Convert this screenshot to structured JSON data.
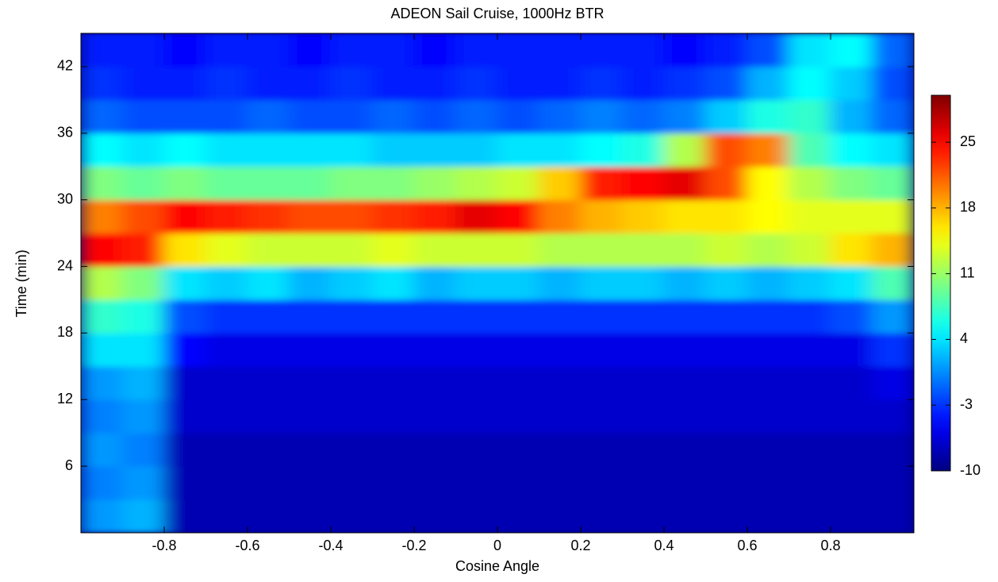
{
  "chart_data": {
    "type": "heatmap",
    "title": "ADEON Sail Cruise, 1000Hz BTR",
    "xlabel": "Cosine Angle",
    "ylabel": "Time (min)",
    "x": [
      -0.95,
      -0.85,
      -0.75,
      -0.65,
      -0.55,
      -0.45,
      -0.35,
      -0.25,
      -0.15,
      -0.05,
      0.05,
      0.15,
      0.25,
      0.35,
      0.45,
      0.55,
      0.65,
      0.75,
      0.85,
      0.95
    ],
    "y": [
      1.5,
      4.5,
      7.5,
      10.5,
      13.5,
      16.5,
      19.5,
      22.5,
      25.5,
      28.5,
      31.5,
      34.5,
      37.5,
      40.5,
      43.5
    ],
    "values": [
      [
        1,
        2,
        -8,
        -8,
        -8,
        -8,
        -8,
        -8,
        -8,
        -8,
        -8,
        -8,
        -8,
        -8,
        -8,
        -8,
        -8,
        -8,
        -8,
        -8
      ],
      [
        0,
        1,
        -8,
        -8,
        -8,
        -8,
        -8,
        -8,
        -8,
        -8,
        -8,
        -8,
        -8,
        -8,
        -8,
        -8,
        -8,
        -8,
        -8,
        -8
      ],
      [
        1,
        0,
        -8,
        -8,
        -8,
        -8,
        -8,
        -8,
        -8,
        -8,
        -8,
        -8,
        -8,
        -8,
        -8,
        -8,
        -8,
        -8,
        -8,
        -8
      ],
      [
        0,
        1,
        -7,
        -7,
        -7,
        -7,
        -7,
        -7,
        -7,
        -7,
        -7,
        -7,
        -7,
        -7,
        -7,
        -7,
        -7,
        -7,
        -7,
        -7
      ],
      [
        1,
        2,
        -7,
        -7,
        -7,
        -7,
        -7,
        -7,
        -7,
        -7,
        -7,
        -7,
        -7,
        -7,
        -7,
        -7,
        -7,
        -7,
        -7,
        -6
      ],
      [
        4,
        4,
        -5,
        -6,
        -6,
        -6,
        -6,
        -6,
        -6,
        -6,
        -6,
        -6,
        -6,
        -6,
        -6,
        -6,
        -6,
        -6,
        -6,
        -3
      ],
      [
        7,
        6,
        -2,
        -3,
        -3,
        -3,
        -3,
        -3,
        -3,
        -3,
        -3,
        -3,
        -3,
        -3,
        -3,
        -3,
        -3,
        -3,
        -2,
        1
      ],
      [
        12,
        10,
        4,
        3,
        4,
        2,
        3,
        4,
        2,
        3,
        3,
        2,
        3,
        3,
        2,
        3,
        2,
        3,
        4,
        8
      ],
      [
        25,
        24,
        16,
        14,
        13,
        13,
        13,
        14,
        13,
        13,
        13,
        12,
        12,
        12,
        12,
        13,
        12,
        13,
        16,
        18
      ],
      [
        20,
        22,
        25,
        24,
        23,
        22,
        22,
        23,
        24,
        26,
        25,
        20,
        18,
        17,
        16,
        16,
        15,
        14,
        14,
        14
      ],
      [
        10,
        9,
        10,
        9,
        9,
        9,
        10,
        10,
        11,
        12,
        13,
        17,
        24,
        25,
        26,
        22,
        15,
        12,
        10,
        9
      ],
      [
        5,
        4,
        5,
        4,
        4,
        4,
        4,
        3,
        3,
        3,
        4,
        4,
        5,
        6,
        12,
        22,
        20,
        8,
        5,
        4
      ],
      [
        -1,
        -2,
        -2,
        -2,
        -1,
        -2,
        -2,
        -1,
        -2,
        -1,
        -2,
        -1,
        0,
        -1,
        0,
        3,
        6,
        7,
        2,
        -1
      ],
      [
        -3,
        -4,
        -4,
        -3,
        -4,
        -4,
        -3,
        -4,
        -4,
        -3,
        -4,
        -4,
        -3,
        -4,
        -3,
        -2,
        2,
        5,
        3,
        -2
      ],
      [
        -4,
        -4,
        -5,
        -4,
        -4,
        -5,
        -4,
        -4,
        -5,
        -4,
        -4,
        -4,
        -4,
        -4,
        -5,
        -4,
        -2,
        4,
        5,
        -1
      ]
    ],
    "xlim": [
      -1,
      1
    ],
    "xticks": [
      -0.8,
      -0.6,
      -0.4,
      -0.2,
      0,
      0.2,
      0.4,
      0.6,
      0.8
    ],
    "ylim": [
      0,
      45
    ],
    "yticks": [
      6,
      12,
      18,
      24,
      30,
      36,
      42
    ],
    "colormap": "jet",
    "clim": [
      -10,
      30
    ],
    "colorbar_ticks": [
      -10,
      -3,
      4,
      11,
      18,
      25
    ]
  }
}
